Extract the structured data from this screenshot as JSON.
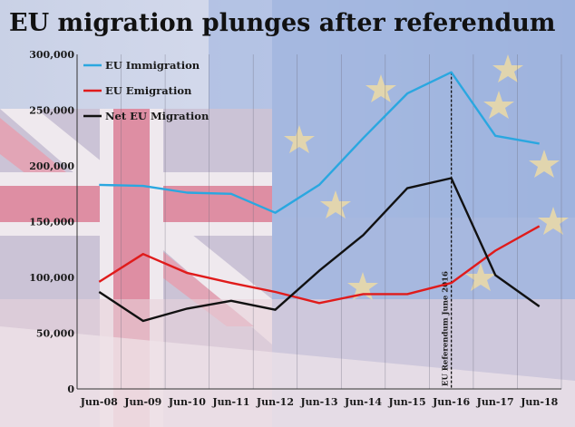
{
  "chart_data": {
    "type": "line",
    "title": "EU migration plunges after referendum",
    "categories": [
      "Jun-08",
      "Jun-09",
      "Jun-10",
      "Jun-11",
      "Jun-12",
      "Jun-13",
      "Jun-14",
      "Jun-15",
      "Jun-16",
      "Jun-17",
      "Jun-18"
    ],
    "series": [
      {
        "name": "EU Immigration",
        "color": "#2aa7e0",
        "values": [
          183000,
          182000,
          176000,
          175000,
          158000,
          183000,
          225000,
          265000,
          284000,
          227000,
          220000
        ]
      },
      {
        "name": "EU Emigration",
        "color": "#e01b1b",
        "values": [
          96000,
          121000,
          104000,
          95000,
          87000,
          77000,
          85000,
          85000,
          95000,
          124000,
          146000
        ]
      },
      {
        "name": "Net EU Migration",
        "color": "#111111",
        "values": [
          87000,
          61000,
          72000,
          79000,
          71000,
          106000,
          138000,
          180000,
          189000,
          102000,
          74000
        ]
      }
    ],
    "ylim": [
      0,
      300000
    ],
    "yticks": [
      0,
      50000,
      100000,
      150000,
      200000,
      250000,
      300000
    ],
    "ytick_labels": [
      "0",
      "50,000",
      "100,000",
      "150,000",
      "200,000",
      "250,000",
      "300,000"
    ],
    "grid": "vertical",
    "legend": "top-left",
    "annotation": {
      "text": "EU Referendum June 2016",
      "category": "Jun-16"
    }
  }
}
